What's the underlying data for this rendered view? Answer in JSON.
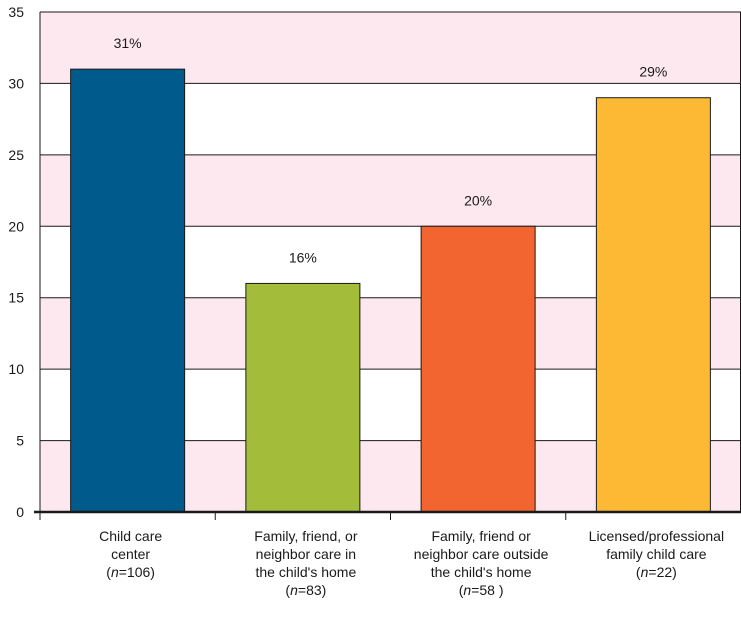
{
  "chart_data": {
    "type": "bar",
    "categories": [
      {
        "lines": [
          "Child care",
          "center"
        ],
        "n_prefix": "(",
        "n_letter": "n",
        "n_value": "=106)"
      },
      {
        "lines": [
          "Family, friend, or",
          "neighbor care in",
          "the child's home"
        ],
        "n_prefix": "(",
        "n_letter": "n",
        "n_value": "=83)"
      },
      {
        "lines": [
          "Family, friend or",
          "neighbor care outside",
          "the child's home"
        ],
        "n_prefix": "(",
        "n_letter": "n",
        "n_value": "=58 )"
      },
      {
        "lines": [
          "Licensed/professional",
          "family child care"
        ],
        "n_prefix": "(",
        "n_letter": "n",
        "n_value": "=22)"
      }
    ],
    "values": [
      31,
      16,
      20,
      29
    ],
    "data_labels": [
      "31%",
      "16%",
      "20%",
      "29%"
    ],
    "colors": [
      "#005a8c",
      "#a3bd3a",
      "#f26531",
      "#fdb933"
    ],
    "ylim": [
      0,
      35
    ],
    "yticks": [
      0,
      5,
      10,
      15,
      20,
      25,
      30,
      35
    ],
    "band_color": "#fde8ef",
    "grid": true,
    "title": "",
    "xlabel": "",
    "ylabel": ""
  }
}
